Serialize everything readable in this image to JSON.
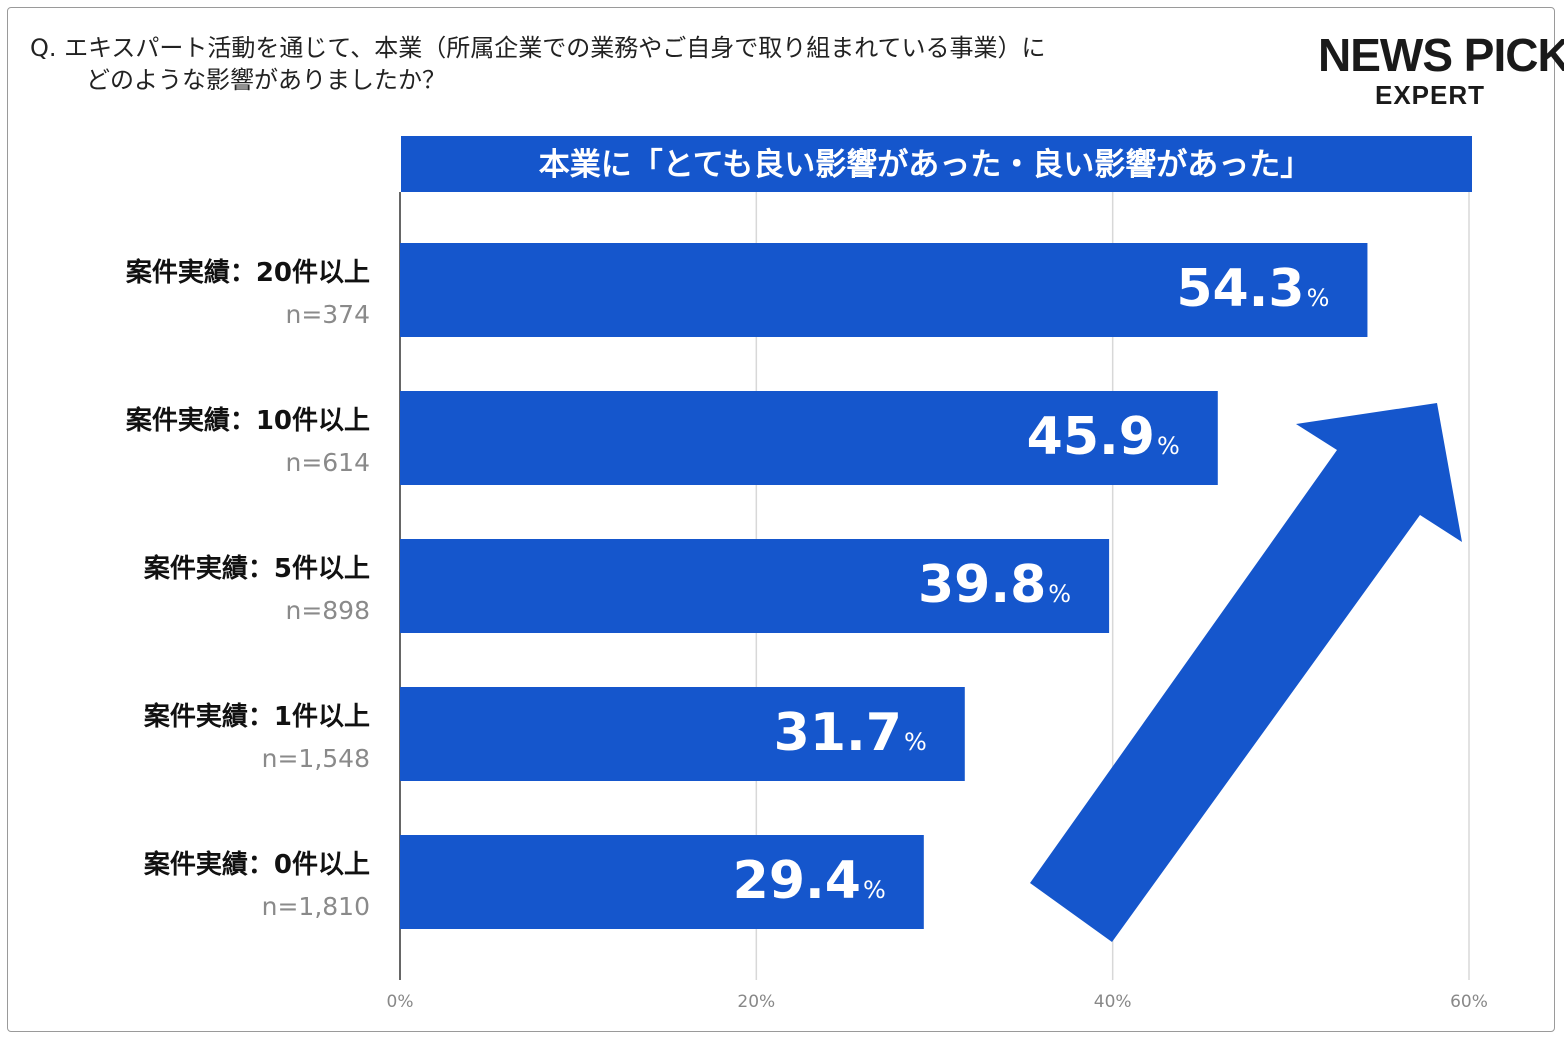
{
  "question": {
    "line1": "Q. エキスパート活動を通じて、本業（所属企業での業務やご自身で取り組まれている事業）に",
    "line2": "どのような影響がありましたか？"
  },
  "logo": {
    "main": "NEWS PICKS",
    "sub": "EXPERT"
  },
  "colors": {
    "bar": "#1556cc",
    "banner": "#1556cc",
    "arrow": "#1556cc",
    "grid": "#d8d8d8",
    "axis": "#333333",
    "sample_text": "#8a8a8a"
  },
  "chart_data": {
    "type": "bar",
    "orientation": "horizontal",
    "title": "本業に「とても良い影響があった・良い影響があった」",
    "categories": [
      "案件実績：20件以上",
      "案件実績：10件以上",
      "案件実績：5件以上",
      "案件実績：1件以上",
      "案件実績：0件以上"
    ],
    "sample_sizes": [
      "n=374",
      "n=614",
      "n=898",
      "n=1,548",
      "n=1,810"
    ],
    "values": [
      54.3,
      45.9,
      39.8,
      31.7,
      29.4
    ],
    "value_labels": [
      "54.3",
      "45.9",
      "39.8",
      "31.7",
      "29.4"
    ],
    "value_unit": "%",
    "xlim": [
      0,
      60
    ],
    "x_ticks": [
      0,
      20,
      40,
      60
    ],
    "x_tick_labels": [
      "0%",
      "20%",
      "40%",
      "60%"
    ],
    "grid": true,
    "annotation": "upward-trend-arrow"
  }
}
